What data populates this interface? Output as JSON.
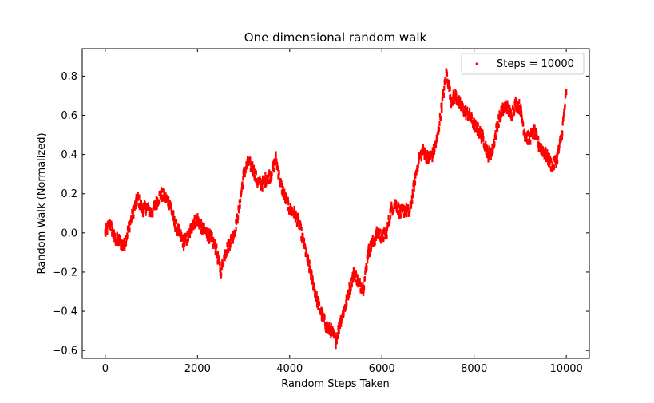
{
  "chart_data": {
    "type": "scatter",
    "title": "One dimensional random walk",
    "xlabel": "Random Steps Taken",
    "ylabel": "Random Walk (Normalized)",
    "xlim": [
      -500,
      10500
    ],
    "ylim": [
      -0.64,
      0.94
    ],
    "xticks": [
      0,
      2000,
      4000,
      6000,
      8000,
      10000
    ],
    "xtick_labels": [
      "0",
      "2000",
      "4000",
      "6000",
      "8000",
      "10000"
    ],
    "yticks": [
      -0.6,
      -0.4,
      -0.2,
      0.0,
      0.2,
      0.4,
      0.6,
      0.8
    ],
    "ytick_labels": [
      "−0.6",
      "−0.4",
      "−0.2",
      "0.0",
      "0.2",
      "0.4",
      "0.6",
      "0.8"
    ],
    "grid": false,
    "legend": {
      "placement": "top-right",
      "entries": [
        "Steps = 10000"
      ]
    },
    "series": [
      {
        "name": "Steps = 10000",
        "color": "#ff0000",
        "marker": "point",
        "x": [
          0,
          100,
          200,
          300,
          400,
          500,
          600,
          700,
          800,
          900,
          1000,
          1100,
          1200,
          1300,
          1400,
          1500,
          1600,
          1700,
          1800,
          1900,
          2000,
          2100,
          2200,
          2300,
          2400,
          2500,
          2600,
          2700,
          2800,
          2900,
          3000,
          3100,
          3200,
          3300,
          3400,
          3500,
          3600,
          3700,
          3800,
          3900,
          4000,
          4100,
          4200,
          4300,
          4400,
          4500,
          4600,
          4700,
          4800,
          4900,
          5000,
          5100,
          5200,
          5300,
          5400,
          5500,
          5600,
          5700,
          5800,
          5900,
          6000,
          6100,
          6200,
          6300,
          6400,
          6500,
          6600,
          6700,
          6800,
          6900,
          7000,
          7100,
          7200,
          7300,
          7400,
          7500,
          7600,
          7700,
          7800,
          7900,
          8000,
          8100,
          8200,
          8300,
          8400,
          8500,
          8600,
          8700,
          8800,
          8900,
          9000,
          9100,
          9200,
          9300,
          9400,
          9500,
          9600,
          9700,
          9800,
          9900,
          10000
        ],
        "y": [
          0.0,
          0.05,
          -0.03,
          -0.04,
          -0.07,
          0.02,
          0.1,
          0.18,
          0.12,
          0.13,
          0.1,
          0.15,
          0.2,
          0.18,
          0.15,
          0.05,
          0.0,
          -0.05,
          -0.02,
          0.05,
          0.07,
          0.02,
          0.0,
          -0.03,
          -0.08,
          -0.2,
          -0.1,
          -0.05,
          0.0,
          0.12,
          0.3,
          0.36,
          0.33,
          0.26,
          0.25,
          0.28,
          0.3,
          0.38,
          0.25,
          0.18,
          0.12,
          0.1,
          0.05,
          -0.05,
          -0.15,
          -0.25,
          -0.35,
          -0.42,
          -0.48,
          -0.5,
          -0.55,
          -0.45,
          -0.38,
          -0.28,
          -0.2,
          -0.26,
          -0.28,
          -0.1,
          -0.05,
          0.0,
          -0.02,
          0.0,
          0.12,
          0.15,
          0.1,
          0.12,
          0.1,
          0.25,
          0.38,
          0.42,
          0.38,
          0.4,
          0.48,
          0.65,
          0.82,
          0.68,
          0.7,
          0.65,
          0.62,
          0.6,
          0.55,
          0.52,
          0.48,
          0.4,
          0.42,
          0.55,
          0.62,
          0.65,
          0.6,
          0.66,
          0.64,
          0.5,
          0.48,
          0.52,
          0.45,
          0.42,
          0.38,
          0.34,
          0.38,
          0.5,
          0.72
        ]
      }
    ]
  }
}
